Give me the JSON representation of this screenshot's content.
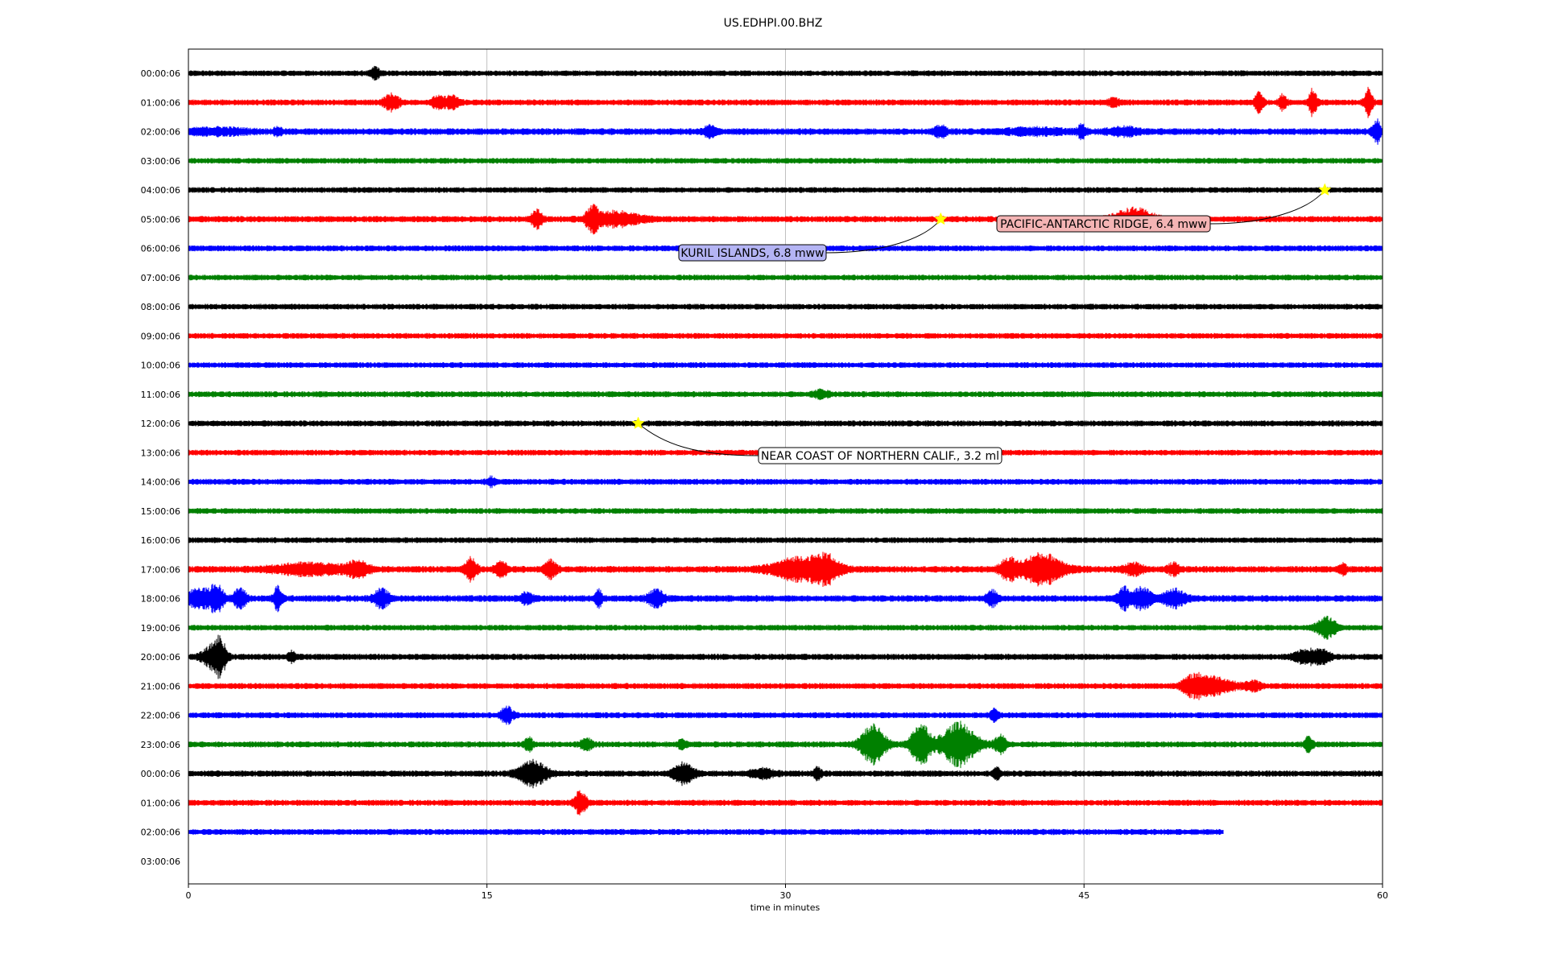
{
  "chart_data": {
    "type": "line",
    "title": "US.EDHPI.00.BHZ",
    "xlabel": "time in minutes",
    "xlim": [
      0,
      60
    ],
    "xticks": [
      "0",
      "15",
      "30",
      "45",
      "60"
    ],
    "grid": "vertical",
    "row_labels": [
      "00:00:06",
      "01:00:06",
      "02:00:06",
      "03:00:06",
      "04:00:06",
      "05:00:06",
      "06:00:06",
      "07:00:06",
      "08:00:06",
      "09:00:06",
      "10:00:06",
      "11:00:06",
      "12:00:06",
      "13:00:06",
      "14:00:06",
      "15:00:06",
      "16:00:06",
      "17:00:06",
      "18:00:06",
      "19:00:06",
      "20:00:06",
      "21:00:06",
      "22:00:06",
      "23:00:06",
      "00:00:06",
      "01:00:06",
      "02:00:06",
      "03:00:06"
    ],
    "row_colors": [
      "#000000",
      "#ff0000",
      "#0000ff",
      "#008000"
    ],
    "rows": [
      {
        "label": "00:00:06",
        "end_minute": 60,
        "noise": 0.6,
        "bursts": [
          [
            9.4,
            0.2,
            7
          ]
        ]
      },
      {
        "label": "01:00:06",
        "end_minute": 60,
        "noise": 0.7,
        "bursts": [
          [
            10.2,
            0.4,
            9
          ],
          [
            12.5,
            0.3,
            6
          ],
          [
            13.2,
            0.4,
            7
          ],
          [
            46.5,
            0.3,
            4
          ],
          [
            53.8,
            0.2,
            14
          ],
          [
            55,
            0.2,
            9
          ],
          [
            56.5,
            0.2,
            16
          ],
          [
            59.3,
            0.2,
            18
          ]
        ]
      },
      {
        "label": "02:00:06",
        "end_minute": 60,
        "noise": 1.0,
        "bursts": [
          [
            1.5,
            1.5,
            3
          ],
          [
            4.5,
            0.2,
            4
          ],
          [
            26.2,
            0.3,
            6
          ],
          [
            37.8,
            0.3,
            6
          ],
          [
            42.5,
            1.5,
            3
          ],
          [
            44.9,
            0.2,
            8
          ],
          [
            47,
            0.8,
            4
          ],
          [
            59.7,
            0.2,
            14
          ]
        ]
      },
      {
        "label": "03:00:06",
        "end_minute": 60,
        "noise": 0.6,
        "bursts": []
      },
      {
        "label": "04:00:06",
        "end_minute": 60,
        "noise": 0.6,
        "bursts": []
      },
      {
        "label": "05:00:06",
        "end_minute": 60,
        "noise": 0.8,
        "bursts": [
          [
            17.5,
            0.3,
            10
          ],
          [
            20.3,
            0.3,
            15
          ],
          [
            21.5,
            1.2,
            8
          ],
          [
            47.5,
            1,
            12
          ]
        ]
      },
      {
        "label": "06:00:06",
        "end_minute": 60,
        "noise": 0.7,
        "bursts": []
      },
      {
        "label": "07:00:06",
        "end_minute": 60,
        "noise": 0.6,
        "bursts": []
      },
      {
        "label": "08:00:06",
        "end_minute": 60,
        "noise": 0.6,
        "bursts": []
      },
      {
        "label": "09:00:06",
        "end_minute": 60,
        "noise": 0.6,
        "bursts": []
      },
      {
        "label": "10:00:06",
        "end_minute": 60,
        "noise": 0.6,
        "bursts": []
      },
      {
        "label": "11:00:06",
        "end_minute": 60,
        "noise": 0.7,
        "bursts": [
          [
            31.8,
            0.4,
            4
          ]
        ]
      },
      {
        "label": "12:00:06",
        "end_minute": 60,
        "noise": 0.7,
        "bursts": []
      },
      {
        "label": "13:00:06",
        "end_minute": 60,
        "noise": 0.6,
        "bursts": []
      },
      {
        "label": "14:00:06",
        "end_minute": 60,
        "noise": 0.7,
        "bursts": [
          [
            15.2,
            0.2,
            5
          ]
        ]
      },
      {
        "label": "15:00:06",
        "end_minute": 60,
        "noise": 0.6,
        "bursts": []
      },
      {
        "label": "16:00:06",
        "end_minute": 60,
        "noise": 0.6,
        "bursts": []
      },
      {
        "label": "17:00:06",
        "end_minute": 60,
        "noise": 1.0,
        "bursts": [
          [
            6,
            1.8,
            6
          ],
          [
            8.5,
            0.6,
            8
          ],
          [
            14.2,
            0.3,
            14
          ],
          [
            15.7,
            0.3,
            9
          ],
          [
            18.2,
            0.3,
            10
          ],
          [
            30.8,
            1.4,
            14
          ],
          [
            32.1,
            0.6,
            12
          ],
          [
            41.2,
            0.4,
            12
          ],
          [
            42.9,
            1.1,
            18
          ],
          [
            47.5,
            0.5,
            6
          ],
          [
            49.5,
            0.3,
            6
          ],
          [
            58,
            0.2,
            6
          ]
        ]
      },
      {
        "label": "18:00:06",
        "end_minute": 60,
        "noise": 1.0,
        "bursts": [
          [
            0.5,
            0.5,
            12
          ],
          [
            1.4,
            0.4,
            16
          ],
          [
            2.6,
            0.3,
            12
          ],
          [
            4.5,
            0.2,
            14
          ],
          [
            9.7,
            0.4,
            10
          ],
          [
            17,
            0.3,
            6
          ],
          [
            20.6,
            0.2,
            10
          ],
          [
            23.5,
            0.4,
            10
          ],
          [
            40.4,
            0.3,
            8
          ],
          [
            47,
            0.3,
            12
          ],
          [
            47.9,
            0.5,
            12
          ],
          [
            49.5,
            0.6,
            10
          ]
        ]
      },
      {
        "label": "19:00:06",
        "end_minute": 60,
        "noise": 0.6,
        "bursts": [
          [
            57.2,
            0.5,
            12
          ]
        ]
      },
      {
        "label": "20:00:06",
        "end_minute": 60,
        "noise": 0.8,
        "bursts": [
          [
            1.2,
            0.5,
            12
          ],
          [
            1.6,
            0.3,
            18
          ],
          [
            5.2,
            0.2,
            6
          ],
          [
            56.2,
            0.6,
            8
          ],
          [
            57,
            0.4,
            6
          ]
        ]
      },
      {
        "label": "21:00:06",
        "end_minute": 60,
        "noise": 0.7,
        "bursts": [
          [
            50.5,
            0.6,
            10
          ],
          [
            51.5,
            1,
            10
          ],
          [
            53.5,
            0.4,
            5
          ]
        ]
      },
      {
        "label": "22:00:06",
        "end_minute": 60,
        "noise": 0.7,
        "bursts": [
          [
            16,
            0.3,
            10
          ],
          [
            40.5,
            0.2,
            6
          ]
        ]
      },
      {
        "label": "23:00:06",
        "end_minute": 60,
        "noise": 0.7,
        "bursts": [
          [
            17.1,
            0.2,
            8
          ],
          [
            20,
            0.3,
            6
          ],
          [
            24.8,
            0.2,
            6
          ],
          [
            34.4,
            0.6,
            24
          ],
          [
            36.8,
            0.5,
            26
          ],
          [
            38.7,
            0.9,
            26
          ],
          [
            40.8,
            0.3,
            10
          ],
          [
            56.3,
            0.2,
            10
          ]
        ]
      },
      {
        "label": "00:00:06",
        "end_minute": 60,
        "noise": 0.8,
        "bursts": [
          [
            17.3,
            0.7,
            16
          ],
          [
            24.9,
            0.5,
            12
          ],
          [
            28.8,
            0.6,
            5
          ],
          [
            31.6,
            0.2,
            6
          ],
          [
            40.6,
            0.2,
            6
          ]
        ]
      },
      {
        "label": "01:00:06",
        "end_minute": 60,
        "noise": 0.7,
        "bursts": [
          [
            19.7,
            0.3,
            14
          ]
        ]
      },
      {
        "label": "02:00:06",
        "end_minute": 52,
        "noise": 0.7,
        "bursts": []
      },
      {
        "label": "03:00:06",
        "end_minute": 0,
        "noise": 0,
        "bursts": []
      }
    ],
    "events": [
      {
        "text": "PACIFIC-ANTARCTIC RIDGE, 6.4 mww",
        "row": 4,
        "minute": 57.1,
        "box_color": "#f4b4b4"
      },
      {
        "text": "KURIL ISLANDS, 6.8 mww",
        "row": 5,
        "minute": 37.8,
        "box_color": "#b4b4f4"
      },
      {
        "text": "NEAR COAST OF NORTHERN CALIF., 3.2 ml",
        "row": 12,
        "minute": 22.6,
        "box_color": "#ffffff"
      }
    ],
    "marker_color": "#ffff00"
  }
}
